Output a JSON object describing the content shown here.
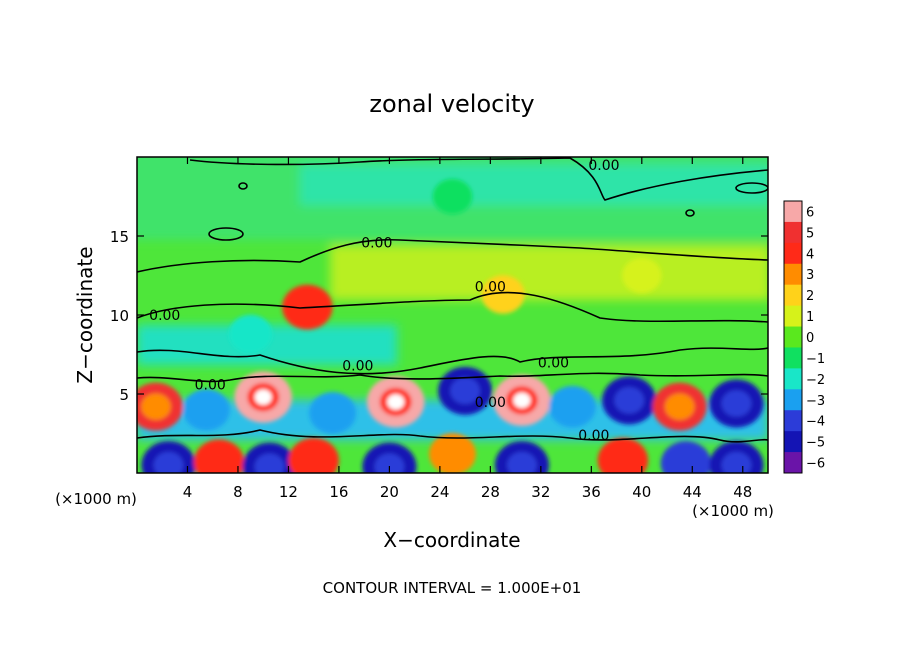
{
  "chart_data": {
    "type": "heatmap",
    "title": "zonal velocity",
    "xlabel": "X−coordinate",
    "ylabel": "Z−coordinate",
    "x_unit_left": "(×1000 m)",
    "x_unit_right": "(×1000 m)",
    "footer": "CONTOUR INTERVAL = 1.000E+01",
    "xlim": [
      0,
      50
    ],
    "ylim": [
      0,
      20
    ],
    "x_ticks": [
      4,
      8,
      12,
      16,
      20,
      24,
      28,
      32,
      36,
      40,
      44,
      48
    ],
    "y_ticks": [
      5,
      10,
      15
    ],
    "colorbar": {
      "min": -6,
      "max": 6,
      "ticks": [
        6,
        5,
        4,
        3,
        2,
        1,
        0,
        -1,
        -2,
        -3,
        -4,
        -5,
        -6
      ],
      "tick_labels": [
        "6",
        "5",
        "4",
        "3",
        "2",
        "1",
        "0",
        "−1",
        "−2",
        "−3",
        "−4",
        "−5",
        "−6"
      ],
      "colors": [
        "#f7a8a8",
        "#f03030",
        "#ff2a18",
        "#ff8c00",
        "#ffd21a",
        "#d6f21a",
        "#5ae81e",
        "#10e060",
        "#19e6c8",
        "#1aa0f0",
        "#2c3cd8",
        "#1414b4",
        "#6a14a8"
      ]
    },
    "contour_labels": [
      {
        "text": "0.00",
        "x": 37.0,
        "z": 19.5
      },
      {
        "text": "0.00",
        "x": 19.0,
        "z": 14.6
      },
      {
        "text": "0.00",
        "x": 28.0,
        "z": 11.8
      },
      {
        "text": "0.00",
        "x": 2.2,
        "z": 10.0
      },
      {
        "text": "0.00",
        "x": 17.5,
        "z": 6.8
      },
      {
        "text": "0.00",
        "x": 33.0,
        "z": 7.0
      },
      {
        "text": "0.00",
        "x": 5.8,
        "z": 5.6
      },
      {
        "text": "0.00",
        "x": 28.0,
        "z": 4.5
      },
      {
        "text": "0.00",
        "x": 36.2,
        "z": 2.4
      }
    ],
    "features": [
      {
        "x": 1.5,
        "z": 4.2,
        "value": 5
      },
      {
        "x": 5.5,
        "z": 4.0,
        "value": -3
      },
      {
        "x": 10.0,
        "z": 4.8,
        "value": 6
      },
      {
        "x": 15.5,
        "z": 3.8,
        "value": -3
      },
      {
        "x": 20.5,
        "z": 4.5,
        "value": 6
      },
      {
        "x": 26.0,
        "z": 5.2,
        "value": -5
      },
      {
        "x": 30.5,
        "z": 4.6,
        "value": 6
      },
      {
        "x": 34.5,
        "z": 4.2,
        "value": -3
      },
      {
        "x": 39.0,
        "z": 4.6,
        "value": -5
      },
      {
        "x": 43.0,
        "z": 4.2,
        "value": 5
      },
      {
        "x": 47.5,
        "z": 4.4,
        "value": -5
      },
      {
        "x": 2.5,
        "z": 0.5,
        "value": -5
      },
      {
        "x": 6.5,
        "z": 0.7,
        "value": 4
      },
      {
        "x": 10.5,
        "z": 0.4,
        "value": -5
      },
      {
        "x": 14.0,
        "z": 0.8,
        "value": 4
      },
      {
        "x": 20.0,
        "z": 0.4,
        "value": -5
      },
      {
        "x": 25.0,
        "z": 1.2,
        "value": 3
      },
      {
        "x": 30.5,
        "z": 0.5,
        "value": -5
      },
      {
        "x": 38.5,
        "z": 0.8,
        "value": 4
      },
      {
        "x": 43.5,
        "z": 0.6,
        "value": -4
      },
      {
        "x": 47.5,
        "z": 0.5,
        "value": -5
      },
      {
        "x": 13.5,
        "z": 10.5,
        "value": 4
      },
      {
        "x": 29.0,
        "z": 11.3,
        "value": 2
      },
      {
        "x": 9.0,
        "z": 8.8,
        "value": -2
      },
      {
        "x": 40.0,
        "z": 12.5,
        "value": 1
      },
      {
        "x": 25.0,
        "z": 17.5,
        "value": -1
      }
    ]
  }
}
